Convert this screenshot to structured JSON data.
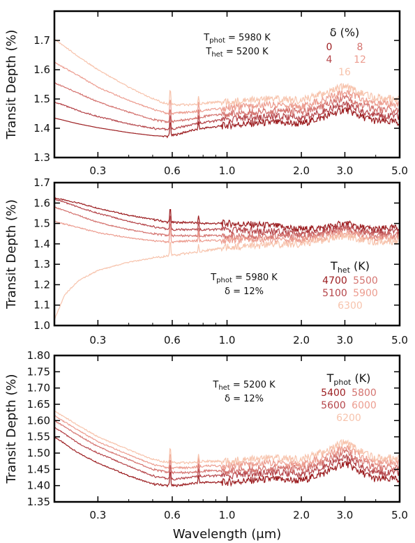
{
  "chart_data": [
    {
      "type": "line",
      "ylabel": "Transit Depth (%)",
      "xlabel": "",
      "xscale": "log",
      "xlim": [
        0.2,
        5.0
      ],
      "ylim": [
        1.3,
        1.8
      ],
      "xticks": [
        0.3,
        0.6,
        1.0,
        2.0,
        3.0,
        5.0
      ],
      "xtick_labels": [
        "0.3",
        "0.6",
        "1.0",
        "2.0",
        "3.0",
        "5.0"
      ],
      "yticks": [
        1.3,
        1.4,
        1.5,
        1.6,
        1.7
      ],
      "ytick_labels": [
        "1.3",
        "1.4",
        "1.5",
        "1.6",
        "1.7"
      ],
      "annotation": {
        "line1_main": "T",
        "line1_sub": "phot",
        "line1_rest": " = 5980 K",
        "line2_main": "T",
        "line2_sub": "het",
        "line2_rest": " = 5200 K"
      },
      "legend": {
        "title": "δ (%)",
        "entries": [
          {
            "label": "0",
            "color": "#9b1c1f"
          },
          {
            "label": "8",
            "color": "#d4736f"
          },
          {
            "label": "4",
            "color": "#b5454a"
          },
          {
            "label": "12",
            "color": "#ec9c8f"
          },
          {
            "label": "16",
            "color": "#f7c3ac"
          }
        ]
      },
      "series": [
        {
          "name": "0",
          "color": "#9b1c1f",
          "x": [
            0.2,
            0.25,
            0.3,
            0.4,
            0.5,
            0.58,
            0.62,
            0.7,
            0.8,
            0.9,
            1.0,
            1.2,
            1.5,
            2.0,
            2.5,
            3.0,
            3.5,
            4.0,
            5.0
          ],
          "y": [
            1.435,
            1.415,
            1.402,
            1.385,
            1.375,
            1.372,
            1.378,
            1.39,
            1.4,
            1.405,
            1.41,
            1.415,
            1.42,
            1.415,
            1.44,
            1.465,
            1.44,
            1.425,
            1.42
          ]
        },
        {
          "name": "4",
          "color": "#b5454a",
          "x": [
            0.2,
            0.25,
            0.3,
            0.4,
            0.5,
            0.58,
            0.62,
            0.7,
            0.8,
            0.9,
            1.0,
            1.2,
            1.5,
            2.0,
            2.5,
            3.0,
            3.5,
            4.0,
            5.0
          ],
          "y": [
            1.49,
            1.46,
            1.44,
            1.415,
            1.4,
            1.395,
            1.4,
            1.41,
            1.42,
            1.425,
            1.43,
            1.435,
            1.44,
            1.435,
            1.46,
            1.485,
            1.46,
            1.445,
            1.44
          ]
        },
        {
          "name": "8",
          "color": "#d4736f",
          "x": [
            0.2,
            0.25,
            0.3,
            0.4,
            0.5,
            0.58,
            0.62,
            0.7,
            0.8,
            0.9,
            1.0,
            1.2,
            1.5,
            2.0,
            2.5,
            3.0,
            3.5,
            4.0,
            5.0
          ],
          "y": [
            1.555,
            1.52,
            1.49,
            1.455,
            1.43,
            1.42,
            1.425,
            1.43,
            1.44,
            1.445,
            1.45,
            1.455,
            1.46,
            1.455,
            1.48,
            1.505,
            1.48,
            1.465,
            1.46
          ]
        },
        {
          "name": "12",
          "color": "#ec9c8f",
          "x": [
            0.2,
            0.25,
            0.3,
            0.4,
            0.5,
            0.58,
            0.62,
            0.7,
            0.8,
            0.9,
            1.0,
            1.2,
            1.5,
            2.0,
            2.5,
            3.0,
            3.5,
            4.0,
            5.0
          ],
          "y": [
            1.625,
            1.58,
            1.54,
            1.495,
            1.465,
            1.45,
            1.452,
            1.455,
            1.46,
            1.465,
            1.47,
            1.475,
            1.48,
            1.475,
            1.5,
            1.525,
            1.5,
            1.485,
            1.48
          ]
        },
        {
          "name": "16",
          "color": "#f7c3ac",
          "x": [
            0.2,
            0.25,
            0.3,
            0.4,
            0.5,
            0.58,
            0.62,
            0.7,
            0.8,
            0.9,
            1.0,
            1.2,
            1.5,
            2.0,
            2.5,
            3.0,
            3.5,
            4.0,
            5.0
          ],
          "y": [
            1.705,
            1.645,
            1.6,
            1.54,
            1.5,
            1.48,
            1.48,
            1.48,
            1.485,
            1.49,
            1.49,
            1.495,
            1.5,
            1.495,
            1.52,
            1.545,
            1.52,
            1.505,
            1.5
          ]
        }
      ]
    },
    {
      "type": "line",
      "ylabel": "Transit Depth (%)",
      "xlabel": "",
      "xscale": "log",
      "xlim": [
        0.2,
        5.0
      ],
      "ylim": [
        1.0,
        1.7
      ],
      "xticks": [
        0.3,
        0.6,
        1.0,
        2.0,
        3.0,
        5.0
      ],
      "xtick_labels": [
        "0.3",
        "0.6",
        "1.0",
        "2.0",
        "3.0",
        "5.0"
      ],
      "yticks": [
        1.0,
        1.1,
        1.2,
        1.3,
        1.4,
        1.5,
        1.6,
        1.7
      ],
      "ytick_labels": [
        "1.0",
        "1.1",
        "1.2",
        "1.3",
        "1.4",
        "1.5",
        "1.6",
        "1.7"
      ],
      "annotation": {
        "line1_main": "T",
        "line1_sub": "phot",
        "line1_rest": " = 5980 K",
        "line2_main": "δ",
        "line2_sub": "",
        "line2_rest": " = 12%"
      },
      "legend": {
        "title_main": "T",
        "title_sub": "het",
        "title_rest": " (K)",
        "entries": [
          {
            "label": "4700",
            "color": "#9b1c1f"
          },
          {
            "label": "5500",
            "color": "#d4736f"
          },
          {
            "label": "5100",
            "color": "#b5454a"
          },
          {
            "label": "5900",
            "color": "#ec9c8f"
          },
          {
            "label": "6300",
            "color": "#f7c3ac"
          }
        ]
      },
      "series": [
        {
          "name": "4700",
          "color": "#9b1c1f",
          "x": [
            0.2,
            0.25,
            0.3,
            0.4,
            0.5,
            0.58,
            0.62,
            0.7,
            0.8,
            0.9,
            1.0,
            1.2,
            1.5,
            2.0,
            2.5,
            3.0,
            3.5,
            4.0,
            5.0
          ],
          "y": [
            1.625,
            1.6,
            1.575,
            1.54,
            1.52,
            1.505,
            1.505,
            1.505,
            1.5,
            1.5,
            1.5,
            1.495,
            1.49,
            1.47,
            1.48,
            1.5,
            1.48,
            1.47,
            1.48
          ]
        },
        {
          "name": "5100",
          "color": "#b5454a",
          "x": [
            0.2,
            0.25,
            0.3,
            0.4,
            0.5,
            0.58,
            0.62,
            0.7,
            0.8,
            0.9,
            1.0,
            1.2,
            1.5,
            2.0,
            2.5,
            3.0,
            3.5,
            4.0,
            5.0
          ],
          "y": [
            1.62,
            1.58,
            1.55,
            1.51,
            1.485,
            1.47,
            1.47,
            1.47,
            1.47,
            1.47,
            1.47,
            1.465,
            1.46,
            1.45,
            1.465,
            1.485,
            1.465,
            1.455,
            1.46
          ]
        },
        {
          "name": "5500",
          "color": "#d4736f",
          "x": [
            0.2,
            0.25,
            0.3,
            0.4,
            0.5,
            0.58,
            0.62,
            0.7,
            0.8,
            0.9,
            1.0,
            1.2,
            1.5,
            2.0,
            2.5,
            3.0,
            3.5,
            4.0,
            5.0
          ],
          "y": [
            1.58,
            1.54,
            1.505,
            1.47,
            1.45,
            1.44,
            1.44,
            1.44,
            1.44,
            1.44,
            1.44,
            1.44,
            1.44,
            1.435,
            1.45,
            1.47,
            1.45,
            1.44,
            1.445
          ]
        },
        {
          "name": "5900",
          "color": "#ec9c8f",
          "x": [
            0.2,
            0.25,
            0.3,
            0.4,
            0.5,
            0.58,
            0.62,
            0.7,
            0.8,
            0.9,
            1.0,
            1.2,
            1.5,
            2.0,
            2.5,
            3.0,
            3.5,
            4.0,
            5.0
          ],
          "y": [
            1.51,
            1.48,
            1.455,
            1.43,
            1.415,
            1.41,
            1.41,
            1.415,
            1.415,
            1.415,
            1.42,
            1.42,
            1.42,
            1.42,
            1.435,
            1.455,
            1.435,
            1.425,
            1.43
          ]
        },
        {
          "name": "6300",
          "color": "#f7c3ac",
          "x": [
            0.2,
            0.22,
            0.25,
            0.3,
            0.4,
            0.5,
            0.58,
            0.62,
            0.7,
            0.8,
            0.9,
            1.0,
            1.2,
            1.5,
            2.0,
            2.5,
            3.0,
            3.5,
            4.0,
            5.0
          ],
          "y": [
            1.03,
            1.15,
            1.22,
            1.27,
            1.31,
            1.33,
            1.34,
            1.345,
            1.355,
            1.365,
            1.375,
            1.385,
            1.39,
            1.395,
            1.4,
            1.42,
            1.44,
            1.42,
            1.41,
            1.415
          ]
        }
      ]
    },
    {
      "type": "line",
      "ylabel": "Transit Depth (%)",
      "xlabel": "Wavelength (μm)",
      "xscale": "log",
      "xlim": [
        0.2,
        5.0
      ],
      "ylim": [
        1.35,
        1.8
      ],
      "xticks": [
        0.3,
        0.6,
        1.0,
        2.0,
        3.0,
        5.0
      ],
      "xtick_labels": [
        "0.3",
        "0.6",
        "1.0",
        "2.0",
        "3.0",
        "5.0"
      ],
      "yticks": [
        1.35,
        1.4,
        1.45,
        1.5,
        1.55,
        1.6,
        1.65,
        1.7,
        1.75,
        1.8
      ],
      "ytick_labels": [
        "1.35",
        "1.40",
        "1.45",
        "1.50",
        "1.55",
        "1.60",
        "1.65",
        "1.70",
        "1.75",
        "1.80"
      ],
      "annotation": {
        "line1_main": "T",
        "line1_sub": "het",
        "line1_rest": " = 5200 K",
        "line2_main": "δ",
        "line2_sub": "",
        "line2_rest": " = 12%"
      },
      "legend": {
        "title_main": "T",
        "title_sub": "phot",
        "title_rest": " (K)",
        "entries": [
          {
            "label": "5400",
            "color": "#9b1c1f"
          },
          {
            "label": "5800",
            "color": "#d4736f"
          },
          {
            "label": "5600",
            "color": "#b5454a"
          },
          {
            "label": "6000",
            "color": "#ec9c8f"
          },
          {
            "label": "6200",
            "color": "#f7c3ac"
          }
        ]
      },
      "series": [
        {
          "name": "5400",
          "color": "#9b1c1f",
          "x": [
            0.2,
            0.25,
            0.3,
            0.4,
            0.5,
            0.58,
            0.62,
            0.7,
            0.8,
            0.9,
            1.0,
            1.2,
            1.5,
            2.0,
            2.5,
            3.0,
            3.5,
            4.0,
            5.0
          ],
          "y": [
            1.55,
            1.5,
            1.47,
            1.43,
            1.405,
            1.4,
            1.4,
            1.405,
            1.41,
            1.41,
            1.41,
            1.415,
            1.42,
            1.415,
            1.44,
            1.47,
            1.44,
            1.42,
            1.42
          ]
        },
        {
          "name": "5600",
          "color": "#b5454a",
          "x": [
            0.2,
            0.25,
            0.3,
            0.4,
            0.5,
            0.58,
            0.62,
            0.7,
            0.8,
            0.9,
            1.0,
            1.2,
            1.5,
            2.0,
            2.5,
            3.0,
            3.5,
            4.0,
            5.0
          ],
          "y": [
            1.58,
            1.53,
            1.5,
            1.46,
            1.43,
            1.42,
            1.42,
            1.425,
            1.43,
            1.43,
            1.43,
            1.435,
            1.44,
            1.435,
            1.46,
            1.49,
            1.46,
            1.44,
            1.44
          ]
        },
        {
          "name": "5800",
          "color": "#d4736f",
          "x": [
            0.2,
            0.25,
            0.3,
            0.4,
            0.5,
            0.58,
            0.62,
            0.7,
            0.8,
            0.9,
            1.0,
            1.2,
            1.5,
            2.0,
            2.5,
            3.0,
            3.5,
            4.0,
            5.0
          ],
          "y": [
            1.6,
            1.555,
            1.52,
            1.48,
            1.45,
            1.44,
            1.44,
            1.44,
            1.445,
            1.445,
            1.445,
            1.45,
            1.455,
            1.45,
            1.475,
            1.505,
            1.475,
            1.455,
            1.455
          ]
        },
        {
          "name": "6000",
          "color": "#ec9c8f",
          "x": [
            0.2,
            0.25,
            0.3,
            0.4,
            0.5,
            0.58,
            0.62,
            0.7,
            0.8,
            0.9,
            1.0,
            1.2,
            1.5,
            2.0,
            2.5,
            3.0,
            3.5,
            4.0,
            5.0
          ],
          "y": [
            1.615,
            1.57,
            1.535,
            1.495,
            1.465,
            1.455,
            1.455,
            1.455,
            1.46,
            1.46,
            1.46,
            1.465,
            1.47,
            1.465,
            1.49,
            1.52,
            1.49,
            1.47,
            1.47
          ]
        },
        {
          "name": "6200",
          "color": "#f7c3ac",
          "x": [
            0.2,
            0.25,
            0.3,
            0.4,
            0.5,
            0.58,
            0.62,
            0.7,
            0.8,
            0.9,
            1.0,
            1.2,
            1.5,
            2.0,
            2.5,
            3.0,
            3.5,
            4.0,
            5.0
          ],
          "y": [
            1.63,
            1.585,
            1.55,
            1.51,
            1.48,
            1.47,
            1.47,
            1.47,
            1.475,
            1.475,
            1.475,
            1.48,
            1.485,
            1.48,
            1.505,
            1.535,
            1.505,
            1.485,
            1.485
          ]
        }
      ]
    }
  ]
}
